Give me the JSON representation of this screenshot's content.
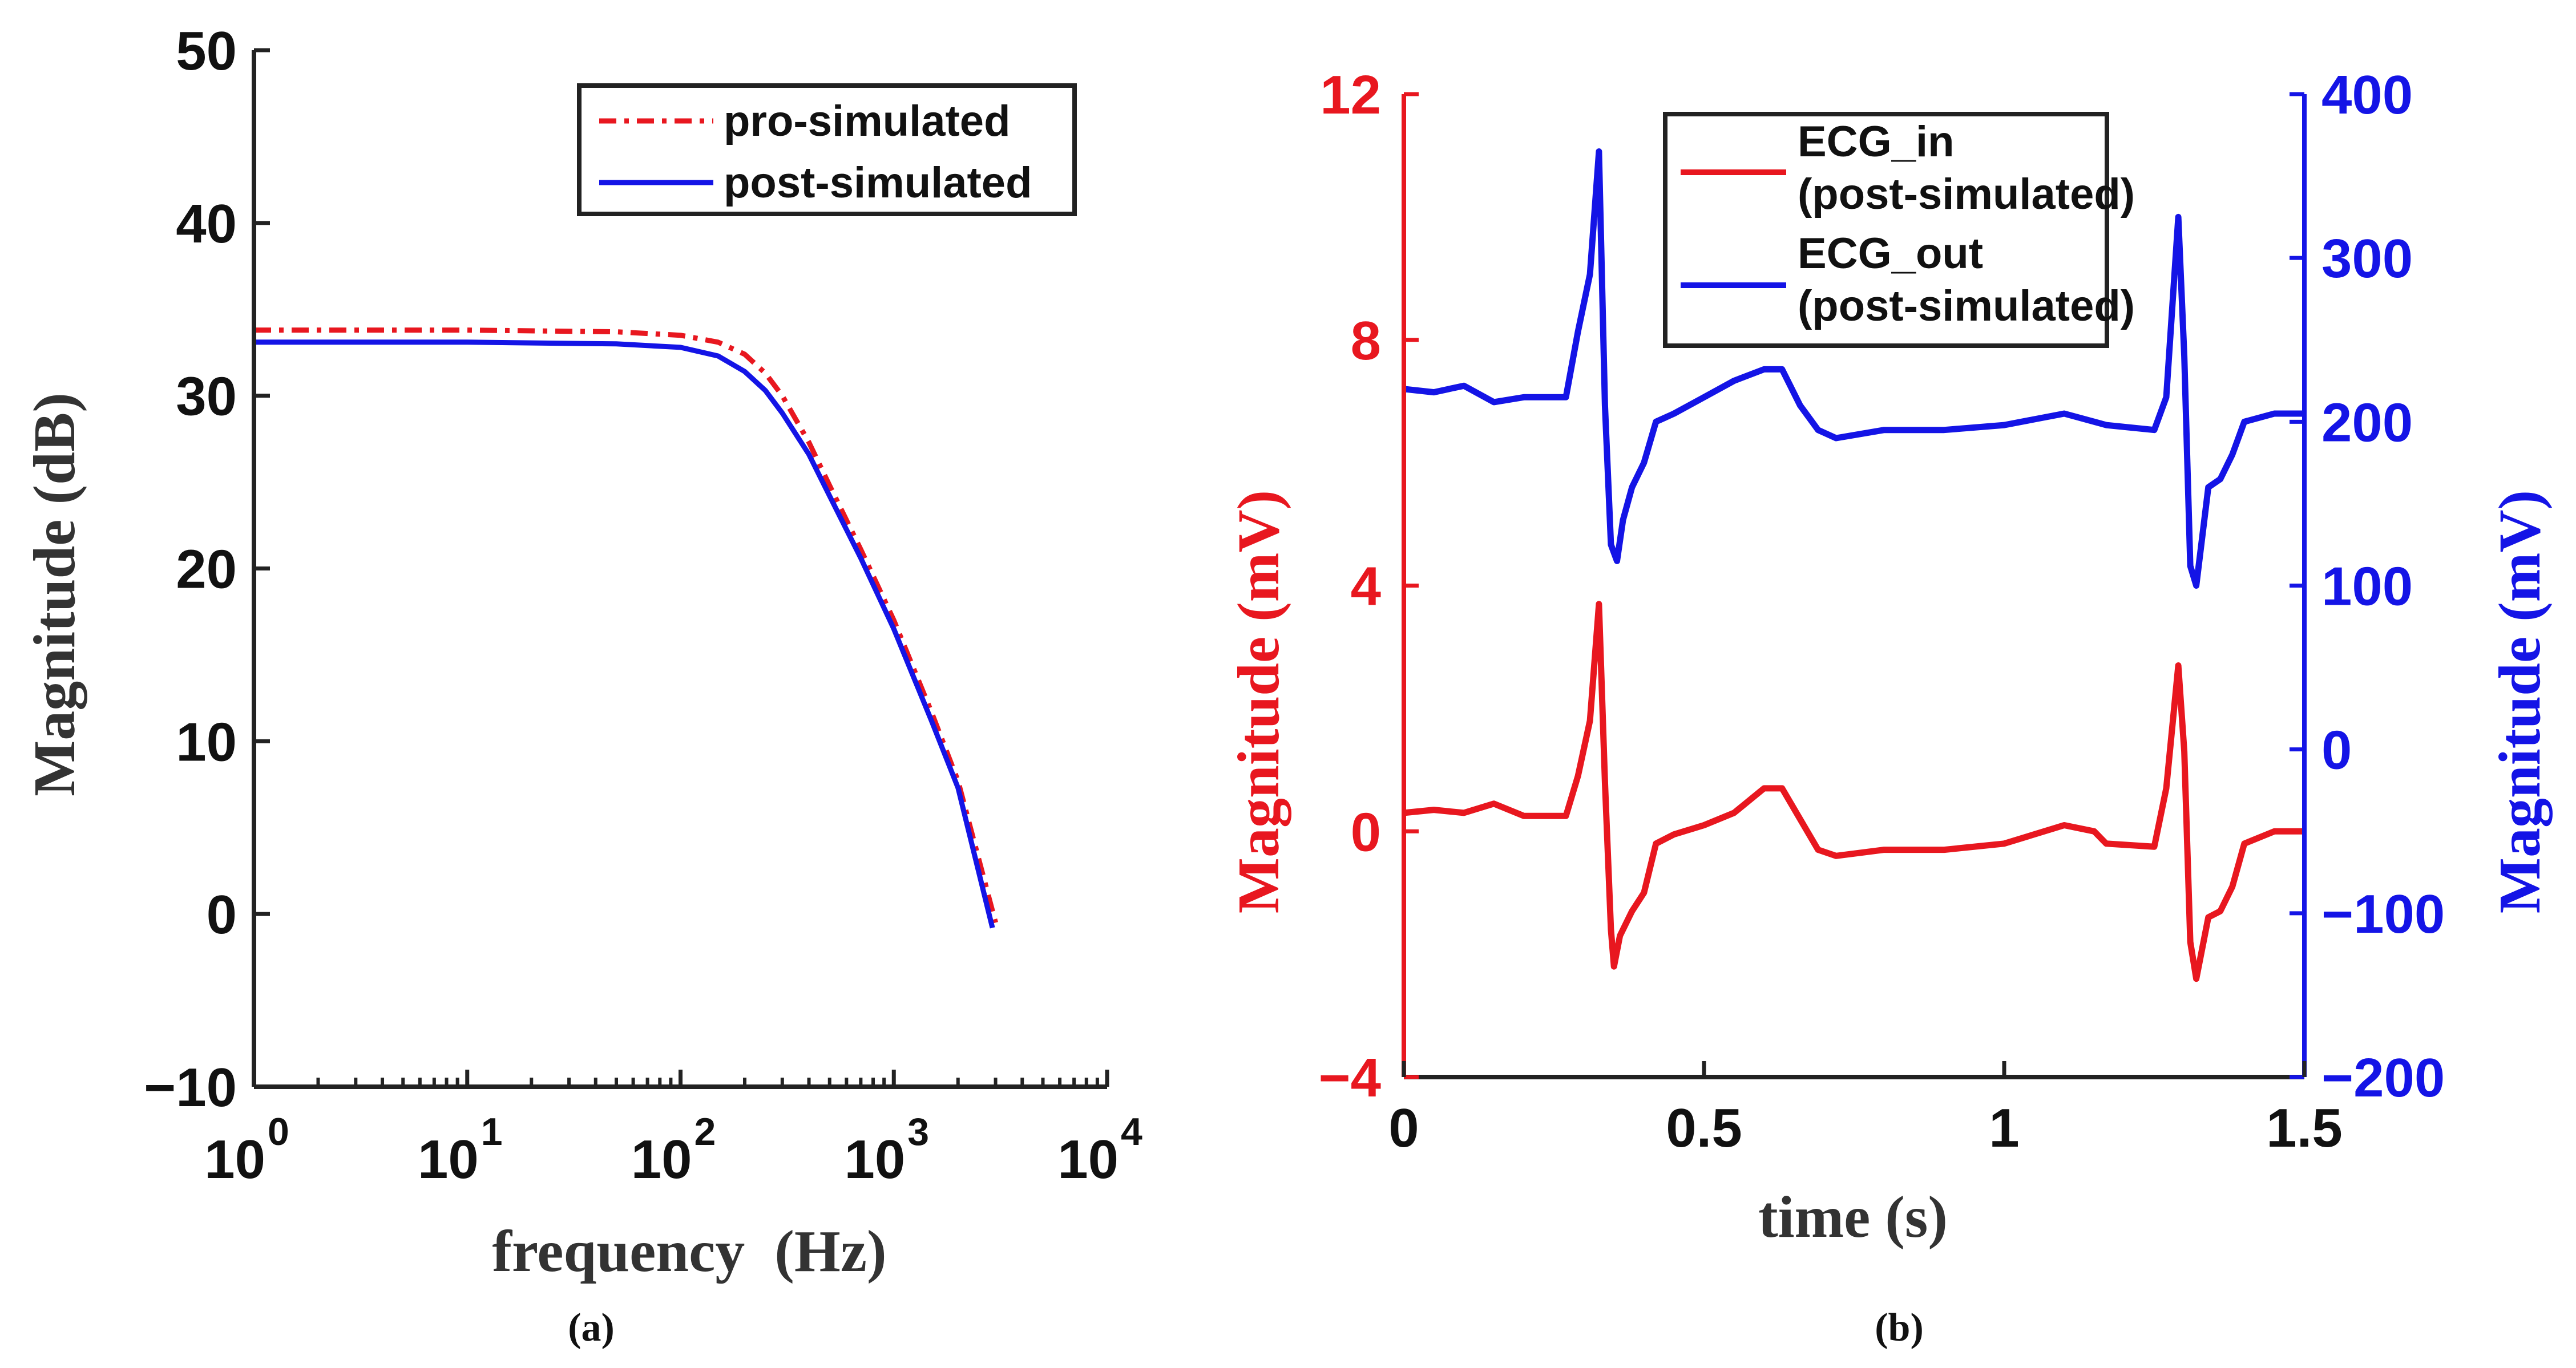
{
  "chart_data": [
    {
      "type": "line",
      "panel_label": "(a)",
      "xlabel": "frequency  (Hz)",
      "ylabel": "Magnitude (dB)",
      "x_scale": "log",
      "xlim": [
        1,
        10000
      ],
      "ylim": [
        -10,
        50
      ],
      "x_ticks": [
        {
          "value": 1,
          "base": "10",
          "exp": "0"
        },
        {
          "value": 10,
          "base": "10",
          "exp": "1"
        },
        {
          "value": 100,
          "base": "10",
          "exp": "2"
        },
        {
          "value": 1000,
          "base": "10",
          "exp": "3"
        },
        {
          "value": 10000,
          "base": "10",
          "exp": "4"
        }
      ],
      "y_ticks": [
        {
          "value": -10,
          "label": "−10"
        },
        {
          "value": 0,
          "label": "0"
        },
        {
          "value": 10,
          "label": "10"
        },
        {
          "value": 20,
          "label": "20"
        },
        {
          "value": 30,
          "label": "30"
        },
        {
          "value": 40,
          "label": "40"
        },
        {
          "value": 50,
          "label": "50"
        }
      ],
      "grid": false,
      "legend_position": "top-right",
      "series": [
        {
          "name": "pro-simulated",
          "color": "#e8171f",
          "style": "dashdot",
          "x": [
            1,
            10,
            50,
            100,
            150,
            200,
            250,
            300,
            400,
            500,
            700,
            1000,
            1500,
            2000,
            3000
          ],
          "y": [
            33.8,
            33.8,
            33.7,
            33.5,
            33.1,
            32.4,
            31.3,
            30.0,
            27.3,
            24.8,
            21.1,
            17.0,
            11.7,
            7.7,
            -0.5
          ]
        },
        {
          "name": "post-simulated",
          "color": "#1414e6",
          "style": "solid",
          "x": [
            1,
            10,
            50,
            100,
            150,
            200,
            250,
            300,
            400,
            500,
            700,
            1000,
            1500,
            2000,
            2900
          ],
          "y": [
            33.1,
            33.1,
            33.0,
            32.8,
            32.3,
            31.4,
            30.3,
            29.0,
            26.6,
            24.2,
            20.6,
            16.5,
            11.2,
            7.3,
            -0.8
          ]
        }
      ]
    },
    {
      "type": "line",
      "panel_label": "(b)",
      "xlabel": "time (s)",
      "ylabel_left": "Magnitude (mV)",
      "ylabel_right": "Magnitude (mV)",
      "xlim": [
        0,
        1.5
      ],
      "ylim_left": [
        -4,
        12
      ],
      "ylim_right": [
        -200,
        400
      ],
      "x_ticks": [
        {
          "value": 0,
          "label": "0"
        },
        {
          "value": 0.5,
          "label": "0.5"
        },
        {
          "value": 1,
          "label": "1"
        },
        {
          "value": 1.5,
          "label": "1.5"
        }
      ],
      "y_ticks_left": [
        {
          "value": -4,
          "label": "−4"
        },
        {
          "value": 0,
          "label": "0"
        },
        {
          "value": 4,
          "label": "4"
        },
        {
          "value": 8,
          "label": "8"
        },
        {
          "value": 12,
          "label": "12"
        }
      ],
      "y_ticks_right": [
        {
          "value": -200,
          "label": "−200"
        },
        {
          "value": -100,
          "label": "−100"
        },
        {
          "value": 0,
          "label": "0"
        },
        {
          "value": 100,
          "label": "100"
        },
        {
          "value": 200,
          "label": "200"
        },
        {
          "value": 300,
          "label": "300"
        },
        {
          "value": 400,
          "label": "400"
        }
      ],
      "left_axis_color": "#e8171f",
      "right_axis_color": "#1414e6",
      "grid": false,
      "legend_position": "top-center",
      "series": [
        {
          "name_lines": [
            "ECG_in",
            "(post-simulated)"
          ],
          "axis": "left",
          "color": "#e8171f",
          "x": [
            0,
            0.05,
            0.1,
            0.15,
            0.2,
            0.27,
            0.29,
            0.31,
            0.325,
            0.335,
            0.345,
            0.35,
            0.36,
            0.38,
            0.4,
            0.42,
            0.45,
            0.5,
            0.55,
            0.6,
            0.63,
            0.66,
            0.69,
            0.72,
            0.8,
            0.9,
            1.0,
            1.1,
            1.15,
            1.17,
            1.25,
            1.27,
            1.29,
            1.3,
            1.31,
            1.32,
            1.34,
            1.36,
            1.38,
            1.4,
            1.45,
            1.5
          ],
          "y": [
            0.3,
            0.35,
            0.3,
            0.45,
            0.25,
            0.25,
            0.9,
            1.8,
            3.7,
            0.8,
            -1.6,
            -2.2,
            -1.7,
            -1.3,
            -1.0,
            -0.2,
            -0.05,
            0.1,
            0.3,
            0.7,
            0.7,
            0.2,
            -0.3,
            -0.4,
            -0.3,
            -0.3,
            -0.2,
            0.1,
            0.0,
            -0.2,
            -0.25,
            0.7,
            2.7,
            1.3,
            -1.8,
            -2.4,
            -1.4,
            -1.3,
            -0.9,
            -0.2,
            0.0,
            0.0
          ]
        },
        {
          "name_lines": [
            "ECG_out",
            "(post-simulated)"
          ],
          "axis": "right",
          "color": "#1414e6",
          "x": [
            0,
            0.05,
            0.1,
            0.15,
            0.2,
            0.27,
            0.29,
            0.31,
            0.325,
            0.335,
            0.345,
            0.355,
            0.365,
            0.38,
            0.4,
            0.42,
            0.45,
            0.5,
            0.55,
            0.6,
            0.63,
            0.66,
            0.69,
            0.72,
            0.8,
            0.9,
            1.0,
            1.1,
            1.15,
            1.17,
            1.25,
            1.27,
            1.29,
            1.3,
            1.31,
            1.32,
            1.34,
            1.36,
            1.38,
            1.4,
            1.45,
            1.5
          ]
        }
      ]
    }
  ]
}
